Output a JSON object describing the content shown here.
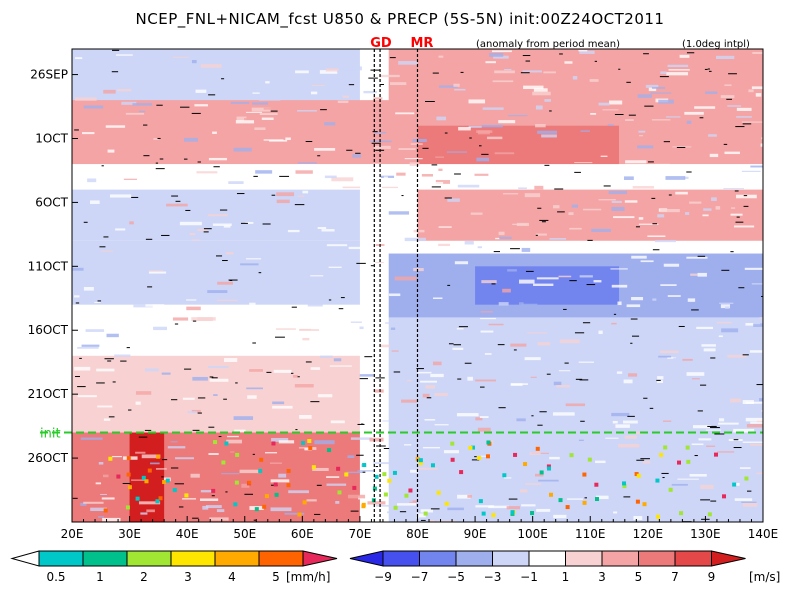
{
  "title": "NCEP_FNL+NICAM_fcst U850 & PRECP (5S-5N) init:00Z24OCT2011",
  "subtitle_anomaly": "(anomaly from period mean)",
  "subtitle_interp": "(1.0deg intpl)",
  "markers": {
    "gd": "GD",
    "mr": "MR",
    "init": "init"
  },
  "colors": {
    "init_line": "#27cc27",
    "marker_red": "#ff0000"
  },
  "chart_data": {
    "type": "heatmap",
    "title": "NCEP_FNL+NICAM_fcst U850 & PRECP (5S-5N) init:00Z24OCT2011",
    "x_tick_labels": [
      "20E",
      "30E",
      "40E",
      "50E",
      "60E",
      "70E",
      "80E",
      "90E",
      "100E",
      "110E",
      "120E",
      "130E",
      "140E"
    ],
    "x_ticks": [
      20,
      30,
      40,
      50,
      60,
      70,
      80,
      90,
      100,
      110,
      120,
      130,
      140
    ],
    "xlim": [
      20,
      140
    ],
    "y_tick_labels": [
      "26SEP",
      "1OCT",
      "6OCT",
      "11OCT",
      "16OCT",
      "21OCT",
      "26OCT"
    ],
    "y_ticks_day_offset": [
      0,
      5,
      10,
      15,
      20,
      25,
      30
    ],
    "ylim_day_offset": [
      -2,
      35
    ],
    "init_day_offset": 28,
    "vertical_lines_lon": [
      72.5,
      73.5,
      80
    ],
    "precip_legend": {
      "unit": "[mm/h]",
      "levels": [
        "0.5",
        "1",
        "2",
        "3",
        "4",
        "5"
      ],
      "colors": [
        "#00c8c8",
        "#00c08c",
        "#a0e632",
        "#ffe600",
        "#ffaa00",
        "#ff6400",
        "#e6285a"
      ]
    },
    "wind_legend": {
      "unit": "[m/s]",
      "levels": [
        "−9",
        "−7",
        "−5",
        "−3",
        "−1",
        "1",
        "3",
        "5",
        "7",
        "9"
      ],
      "colors": [
        "#2828e6",
        "#4650ee",
        "#7284ee",
        "#9fafee",
        "#cdd6f7",
        "#ffffff",
        "#f8d2d2",
        "#f4a4a4",
        "#ec7a7a",
        "#e44848",
        "#d21e1e"
      ]
    },
    "regions": [
      {
        "lon": [
          20,
          140
        ],
        "day": [
          -2,
          35
        ],
        "u850": -1
      },
      {
        "lon": [
          20,
          70
        ],
        "day": [
          -2,
          4
        ],
        "u850": -3
      },
      {
        "lon": [
          75,
          140
        ],
        "day": [
          -2,
          5
        ],
        "u850": 3
      },
      {
        "lon": [
          20,
          140
        ],
        "day": [
          2,
          7
        ],
        "u850": 3
      },
      {
        "lon": [
          80,
          115
        ],
        "day": [
          4,
          7
        ],
        "u850": 5
      },
      {
        "lon": [
          20,
          70
        ],
        "day": [
          9,
          13
        ],
        "u850": -3
      },
      {
        "lon": [
          80,
          140
        ],
        "day": [
          9,
          13
        ],
        "u850": 4
      },
      {
        "lon": [
          20,
          70
        ],
        "day": [
          13,
          18
        ],
        "u850": -3
      },
      {
        "lon": [
          75,
          140
        ],
        "day": [
          14,
          19
        ],
        "u850": -5
      },
      {
        "lon": [
          90,
          115
        ],
        "day": [
          15,
          18
        ],
        "u850": -7
      },
      {
        "lon": [
          75,
          140
        ],
        "day": [
          19,
          28
        ],
        "u850": -3
      },
      {
        "lon": [
          20,
          70
        ],
        "day": [
          22,
          28
        ],
        "u850": 1
      },
      {
        "lon": [
          20,
          70
        ],
        "day": [
          28,
          35
        ],
        "u850": 5
      },
      {
        "lon": [
          30,
          36
        ],
        "day": [
          28,
          35
        ],
        "u850": 9
      },
      {
        "lon": [
          75,
          140
        ],
        "day": [
          28,
          35
        ],
        "u850": -3
      }
    ]
  }
}
